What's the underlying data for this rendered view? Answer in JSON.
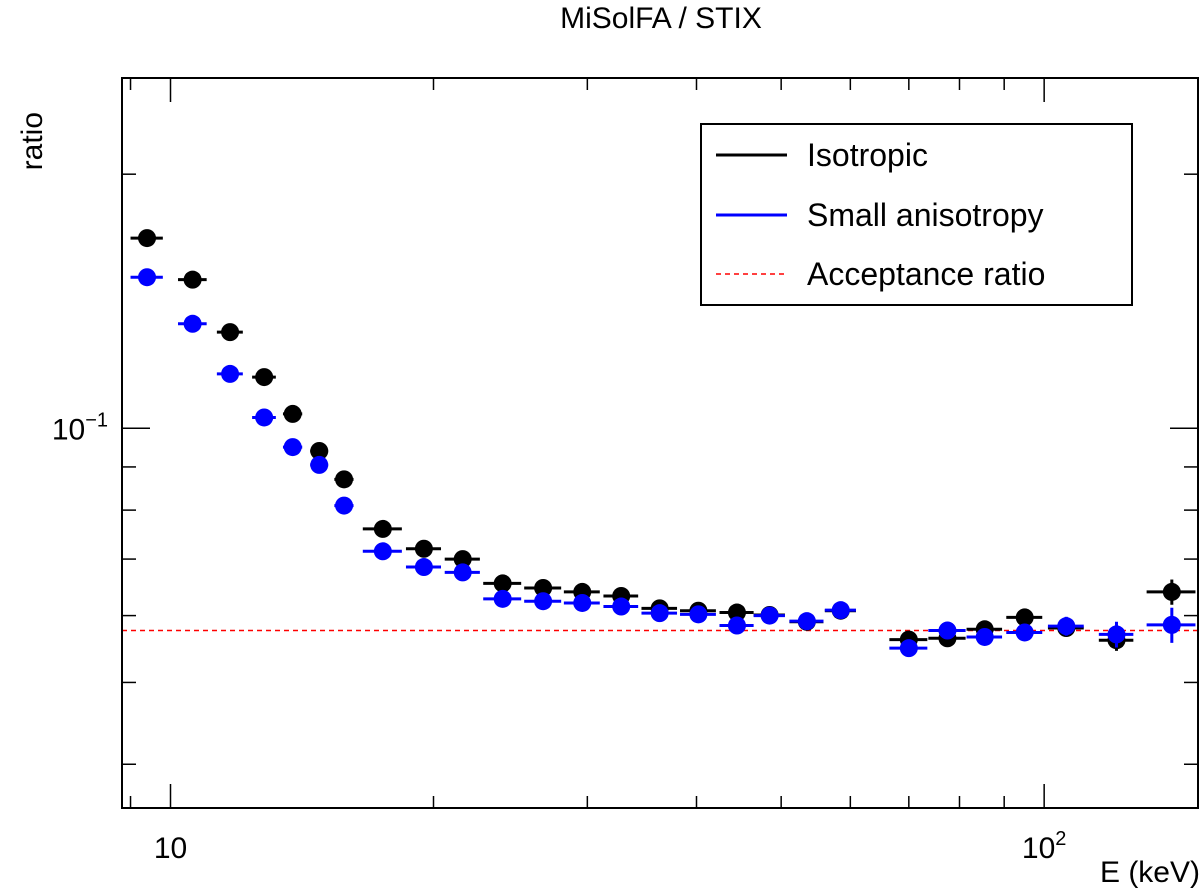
{
  "chart_data": {
    "type": "scatter",
    "title": "MiSolFA / STIX",
    "xlabel": "E (keV)",
    "ylabel": "ratio",
    "xscale": "log",
    "yscale": "log",
    "xlim": [
      8.8,
      150
    ],
    "ylim": [
      0.0355,
      0.26
    ],
    "x_ticklabels": [
      {
        "value": 10,
        "base": "10",
        "exp": ""
      },
      {
        "value": 100,
        "base": "10",
        "exp": "2"
      }
    ],
    "y_ticklabels": [
      {
        "value": 0.1,
        "base": "10",
        "exp": "−1"
      }
    ],
    "grid": false,
    "legend_position": "top-right",
    "series": [
      {
        "name": "Isotropic",
        "color": "#000000",
        "marker": "circle",
        "points": [
          {
            "x": 9.4,
            "y": 0.168,
            "xerr": 0.4
          },
          {
            "x": 10.6,
            "y": 0.15,
            "xerr": 0.4
          },
          {
            "x": 11.7,
            "y": 0.13,
            "xerr": 0.4
          },
          {
            "x": 12.8,
            "y": 0.115,
            "xerr": 0.4
          },
          {
            "x": 13.8,
            "y": 0.104,
            "xerr": 0.35
          },
          {
            "x": 14.8,
            "y": 0.094,
            "xerr": 0.35
          },
          {
            "x": 15.8,
            "y": 0.087,
            "xerr": 0.4
          },
          {
            "x": 17.5,
            "y": 0.076,
            "xerr": 0.9
          },
          {
            "x": 19.5,
            "y": 0.072,
            "xerr": 0.9
          },
          {
            "x": 21.6,
            "y": 0.07,
            "xerr": 1.0
          },
          {
            "x": 24.0,
            "y": 0.0655,
            "xerr": 1.2
          },
          {
            "x": 26.7,
            "y": 0.0647,
            "xerr": 1.3
          },
          {
            "x": 29.6,
            "y": 0.064,
            "xerr": 1.4
          },
          {
            "x": 32.8,
            "y": 0.0633,
            "xerr": 1.5
          },
          {
            "x": 36.3,
            "y": 0.0612,
            "xerr": 1.7
          },
          {
            "x": 40.2,
            "y": 0.0608,
            "xerr": 1.9
          },
          {
            "x": 44.5,
            "y": 0.0605,
            "xerr": 2.0
          },
          {
            "x": 48.5,
            "y": 0.0601,
            "xerr": 2.0
          },
          {
            "x": 53.5,
            "y": 0.059,
            "xerr": 2.4
          },
          {
            "x": 58.5,
            "y": 0.0608,
            "xerr": 2.4
          },
          {
            "x": 70.0,
            "y": 0.0562,
            "xerr": 3.5
          },
          {
            "x": 77.5,
            "y": 0.0564,
            "xerr": 3.8
          },
          {
            "x": 85.5,
            "y": 0.0578,
            "xerr": 4.0
          },
          {
            "x": 95.0,
            "y": 0.0597,
            "xerr": 4.5,
            "yerr": 0.0012
          },
          {
            "x": 106.0,
            "y": 0.058,
            "xerr": 5.0,
            "yerr": 0.0012
          },
          {
            "x": 121.0,
            "y": 0.0561,
            "xerr": 5.5,
            "yerr": 0.0016
          },
          {
            "x": 140.0,
            "y": 0.064,
            "xerr": 9.0,
            "yerr": 0.0022
          }
        ]
      },
      {
        "name": "Small anisotropy",
        "color": "#0000ff",
        "marker": "circle",
        "points": [
          {
            "x": 9.4,
            "y": 0.151,
            "xerr": 0.4
          },
          {
            "x": 10.6,
            "y": 0.133,
            "xerr": 0.4
          },
          {
            "x": 11.7,
            "y": 0.116,
            "xerr": 0.4
          },
          {
            "x": 12.8,
            "y": 0.103,
            "xerr": 0.4
          },
          {
            "x": 13.8,
            "y": 0.095,
            "xerr": 0.35
          },
          {
            "x": 14.8,
            "y": 0.0905,
            "xerr": 0.35
          },
          {
            "x": 15.8,
            "y": 0.081,
            "xerr": 0.4
          },
          {
            "x": 17.5,
            "y": 0.0715,
            "xerr": 0.9
          },
          {
            "x": 19.5,
            "y": 0.0685,
            "xerr": 0.9
          },
          {
            "x": 21.6,
            "y": 0.0675,
            "xerr": 1.0
          },
          {
            "x": 24.0,
            "y": 0.0628,
            "xerr": 1.2
          },
          {
            "x": 26.7,
            "y": 0.0624,
            "xerr": 1.3
          },
          {
            "x": 29.6,
            "y": 0.0621,
            "xerr": 1.4
          },
          {
            "x": 32.8,
            "y": 0.0615,
            "xerr": 1.5
          },
          {
            "x": 36.3,
            "y": 0.0604,
            "xerr": 1.7
          },
          {
            "x": 40.2,
            "y": 0.0602,
            "xerr": 1.9
          },
          {
            "x": 44.5,
            "y": 0.0584,
            "xerr": 2.0
          },
          {
            "x": 48.5,
            "y": 0.06,
            "xerr": 2.0
          },
          {
            "x": 53.5,
            "y": 0.0591,
            "xerr": 2.4
          },
          {
            "x": 58.5,
            "y": 0.0609,
            "xerr": 2.4
          },
          {
            "x": 70.0,
            "y": 0.0549,
            "xerr": 3.5
          },
          {
            "x": 77.5,
            "y": 0.0576,
            "xerr": 3.8,
            "yerr": 0.001
          },
          {
            "x": 85.5,
            "y": 0.0566,
            "xerr": 4.0,
            "yerr": 0.0012
          },
          {
            "x": 95.0,
            "y": 0.0573,
            "xerr": 4.5,
            "yerr": 0.0013
          },
          {
            "x": 106.0,
            "y": 0.0583,
            "xerr": 5.0,
            "yerr": 0.0015
          },
          {
            "x": 121.0,
            "y": 0.057,
            "xerr": 5.5,
            "yerr": 0.002
          },
          {
            "x": 140.0,
            "y": 0.0585,
            "xerr": 9.0,
            "yerr": 0.0028
          }
        ]
      }
    ],
    "reference_line": {
      "name": "Acceptance ratio",
      "y": 0.0576,
      "color": "#ff0000",
      "style": "dashed"
    }
  }
}
